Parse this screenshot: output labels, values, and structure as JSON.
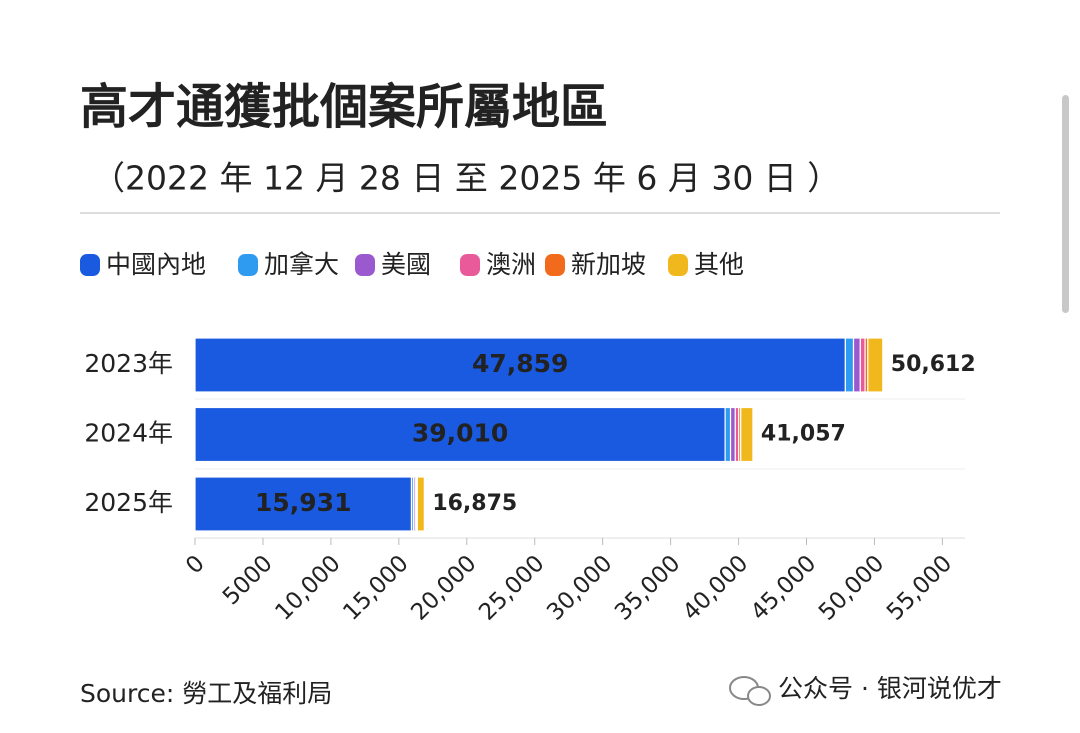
{
  "chart_data": {
    "type": "bar",
    "orientation": "horizontal",
    "stacked": true,
    "title": "高才通獲批個案所屬地區",
    "subtitle": "（2022 年 12 月 28 日 至 2025 年 6 月 30 日 ）",
    "categories": [
      "2023年",
      "2024年",
      "2025年"
    ],
    "series": [
      {
        "name": "中國內地",
        "color": "#1a5ae0",
        "values": [
          47859,
          39010,
          15931
        ],
        "value_labels": [
          "47,859",
          "39,010",
          "15,931"
        ]
      },
      {
        "name": "加拿大",
        "color": "#2f9bf0",
        "values": [
          600,
          400,
          150
        ]
      },
      {
        "name": "美國",
        "color": "#9b59d0",
        "values": [
          500,
          350,
          130
        ]
      },
      {
        "name": "澳洲",
        "color": "#e85a9a",
        "values": [
          350,
          250,
          90
        ]
      },
      {
        "name": "新加坡",
        "color": "#f26b1d",
        "values": [
          200,
          150,
          60
        ]
      },
      {
        "name": "其他",
        "color": "#f0b81c",
        "values": [
          1103,
          897,
          514
        ]
      }
    ],
    "totals": [
      50612,
      41057,
      16875
    ],
    "total_labels": [
      "50,612",
      "41,057",
      "16,875"
    ],
    "xlim": [
      0,
      56000
    ],
    "xticks": [
      0,
      5000,
      {
        "value": 10000,
        "label": "10,000"
      },
      {
        "value": 15000,
        "label": "15,000"
      },
      {
        "value": 20000,
        "label": "20,000"
      },
      {
        "value": 25000,
        "label": "25,000"
      },
      {
        "value": 30000,
        "label": "30,000"
      },
      {
        "value": 35000,
        "label": "35,000"
      },
      {
        "value": 40000,
        "label": "40,000"
      },
      {
        "value": 45000,
        "label": "45,000"
      },
      {
        "value": 50000,
        "label": "50,000"
      },
      {
        "value": 55000,
        "label": "55,000"
      }
    ],
    "grid": false,
    "source": "Source: 勞工及福利局",
    "watermark": "公众号 · 银河说优才"
  }
}
